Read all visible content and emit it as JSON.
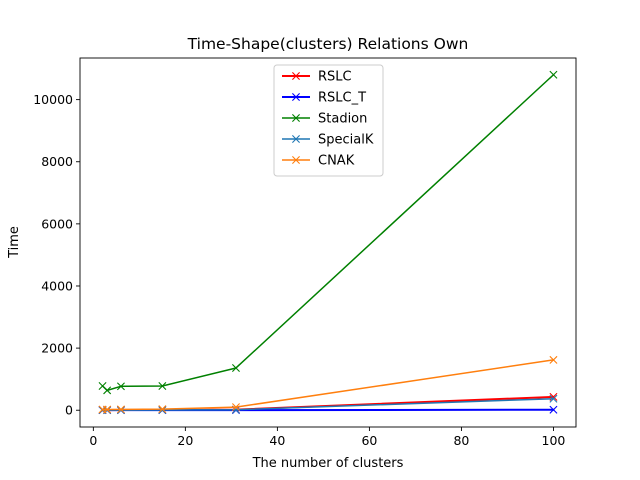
{
  "chart_data": {
    "type": "line",
    "title": "Time-Shape(clusters) Relations Own",
    "xlabel": "The number of clusters",
    "ylabel": "Time",
    "xlim": [
      -2.9,
      104.9
    ],
    "ylim": [
      -540,
      11340
    ],
    "x_ticks": [
      0,
      20,
      40,
      60,
      80,
      100
    ],
    "y_ticks": [
      0,
      2000,
      4000,
      6000,
      8000,
      10000
    ],
    "grid": false,
    "legend_position": "upper center",
    "marker": "x",
    "series": [
      {
        "name": "RSLC",
        "color": "#ff0000",
        "line_width": 2,
        "points": [
          [
            2,
            5
          ],
          [
            3,
            5
          ],
          [
            6,
            6
          ],
          [
            15,
            8
          ],
          [
            31,
            20
          ],
          [
            100,
            430
          ]
        ]
      },
      {
        "name": "RSLC_T",
        "color": "#0000ff",
        "line_width": 2,
        "points": [
          [
            2,
            2
          ],
          [
            3,
            2
          ],
          [
            6,
            2
          ],
          [
            15,
            3
          ],
          [
            31,
            4
          ],
          [
            100,
            15
          ]
        ]
      },
      {
        "name": "Stadion",
        "color": "#008000",
        "line_width": 1.5,
        "points": [
          [
            2,
            780
          ],
          [
            3,
            640
          ],
          [
            6,
            770
          ],
          [
            15,
            780
          ],
          [
            31,
            1360
          ],
          [
            100,
            10800
          ]
        ]
      },
      {
        "name": "SpecialK",
        "color": "#1f77b4",
        "line_width": 1.5,
        "points": [
          [
            2,
            3
          ],
          [
            3,
            3
          ],
          [
            6,
            4
          ],
          [
            15,
            6
          ],
          [
            31,
            15
          ],
          [
            100,
            370
          ]
        ]
      },
      {
        "name": "CNAK",
        "color": "#ff7f0e",
        "line_width": 1.5,
        "points": [
          [
            2,
            25
          ],
          [
            3,
            25
          ],
          [
            6,
            28
          ],
          [
            15,
            35
          ],
          [
            31,
            100
          ],
          [
            100,
            1620
          ]
        ]
      }
    ]
  }
}
